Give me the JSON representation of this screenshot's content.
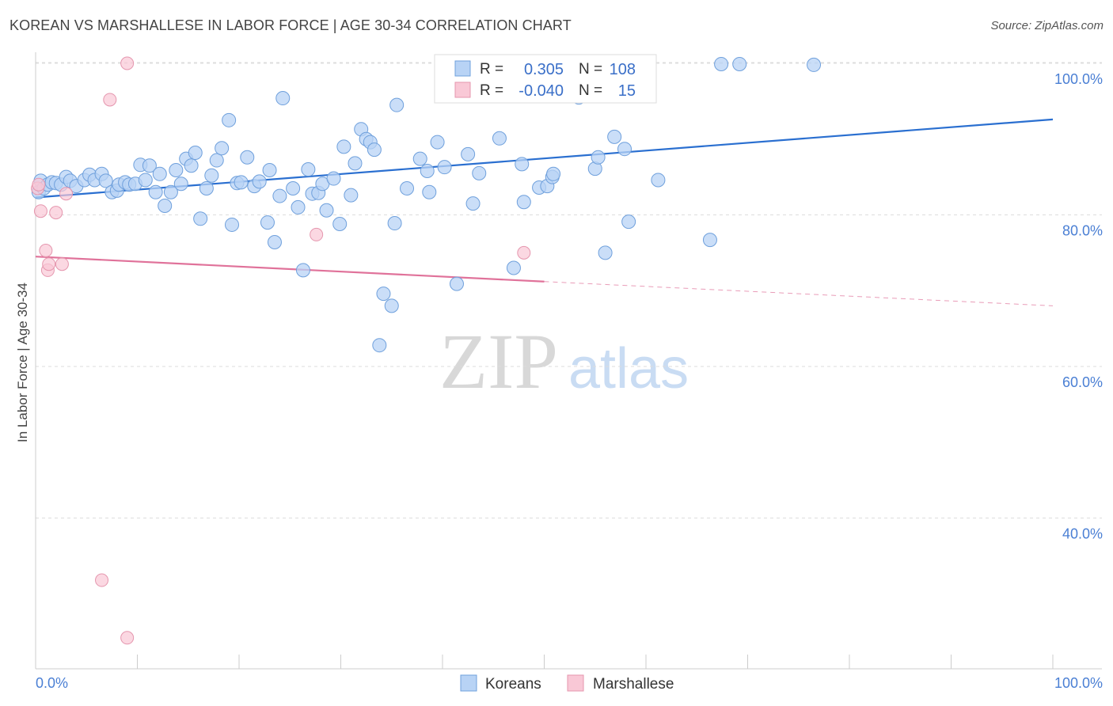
{
  "title": "KOREAN VS MARSHALLESE IN LABOR FORCE | AGE 30-34 CORRELATION CHART",
  "source": "Source: ZipAtlas.com",
  "watermark": {
    "zip": "ZIP",
    "atlas": "atlas"
  },
  "colors": {
    "korean_fill": "#b8d3f5",
    "korean_stroke": "#6fa0dc",
    "korean_line": "#2a6fd0",
    "marsh_fill": "#f9c8d6",
    "marsh_stroke": "#e596ae",
    "marsh_line": "#e0729a",
    "grid": "#dddddd",
    "axis_text": "#4a7fd4"
  },
  "legend": {
    "korean": {
      "r_label": "R =",
      "r_value": "0.305",
      "n_label": "N =",
      "n_value": "108"
    },
    "marsh": {
      "r_label": "R =",
      "r_value": "-0.040",
      "n_label": "N =",
      "n_value": "15"
    }
  },
  "bottom_legend": {
    "korean": "Koreans",
    "marsh": "Marshallese"
  },
  "chart_data": {
    "type": "scatter",
    "title": "KOREAN VS MARSHALLESE IN LABOR FORCE | AGE 30-34 CORRELATION CHART",
    "xlabel": "",
    "ylabel": "In Labor Force | Age 30-34",
    "xlim": [
      0,
      100
    ],
    "ylim": [
      18,
      102
    ],
    "x_tick_labels": [
      "0.0%",
      "100.0%"
    ],
    "y_ticks": [
      40,
      60,
      80,
      100
    ],
    "y_tick_labels": [
      "40.0%",
      "60.0%",
      "80.0%",
      "100.0%"
    ],
    "grid": true,
    "series": [
      {
        "name": "Koreans",
        "r": 0.305,
        "n": 108,
        "trend": {
          "x": [
            0,
            100
          ],
          "y": [
            82.3,
            92.6
          ]
        },
        "points": [
          [
            0.3,
            83.0
          ],
          [
            0.5,
            84.5
          ],
          [
            0.8,
            83.5
          ],
          [
            1.2,
            84.0
          ],
          [
            1.6,
            84.3
          ],
          [
            2.0,
            84.2
          ],
          [
            2.5,
            84.0
          ],
          [
            3.0,
            85.0
          ],
          [
            3.4,
            84.5
          ],
          [
            4.0,
            83.8
          ],
          [
            4.8,
            84.6
          ],
          [
            5.3,
            85.3
          ],
          [
            5.8,
            84.6
          ],
          [
            6.5,
            85.4
          ],
          [
            6.9,
            84.5
          ],
          [
            7.5,
            83.0
          ],
          [
            8.0,
            83.2
          ],
          [
            8.2,
            84.0
          ],
          [
            8.8,
            84.3
          ],
          [
            9.2,
            84.0
          ],
          [
            9.8,
            84.1
          ],
          [
            10.3,
            86.6
          ],
          [
            10.8,
            84.6
          ],
          [
            11.2,
            86.5
          ],
          [
            11.8,
            83.0
          ],
          [
            12.2,
            85.4
          ],
          [
            12.7,
            81.2
          ],
          [
            13.3,
            83.0
          ],
          [
            13.8,
            85.9
          ],
          [
            14.3,
            84.1
          ],
          [
            14.8,
            87.4
          ],
          [
            15.3,
            86.5
          ],
          [
            15.7,
            88.2
          ],
          [
            16.2,
            79.5
          ],
          [
            16.8,
            83.5
          ],
          [
            17.3,
            85.2
          ],
          [
            17.8,
            87.2
          ],
          [
            18.3,
            88.8
          ],
          [
            19.0,
            92.5
          ],
          [
            19.3,
            78.7
          ],
          [
            19.8,
            84.2
          ],
          [
            20.2,
            84.3
          ],
          [
            20.8,
            87.6
          ],
          [
            21.5,
            83.8
          ],
          [
            22.0,
            84.4
          ],
          [
            22.8,
            79.0
          ],
          [
            23.0,
            85.9
          ],
          [
            23.5,
            76.4
          ],
          [
            24.0,
            82.5
          ],
          [
            24.3,
            95.4
          ],
          [
            25.3,
            83.5
          ],
          [
            25.8,
            81.0
          ],
          [
            26.3,
            72.7
          ],
          [
            26.8,
            86.0
          ],
          [
            27.2,
            82.8
          ],
          [
            27.8,
            82.9
          ],
          [
            28.2,
            84.1
          ],
          [
            28.6,
            80.6
          ],
          [
            29.3,
            84.8
          ],
          [
            29.9,
            78.8
          ],
          [
            30.3,
            89.0
          ],
          [
            31.0,
            82.6
          ],
          [
            31.4,
            86.8
          ],
          [
            32.0,
            91.3
          ],
          [
            32.5,
            90.0
          ],
          [
            32.9,
            89.6
          ],
          [
            33.3,
            88.6
          ],
          [
            33.8,
            62.8
          ],
          [
            34.2,
            69.6
          ],
          [
            35.0,
            68.0
          ],
          [
            35.5,
            94.5
          ],
          [
            35.3,
            78.9
          ],
          [
            36.5,
            83.5
          ],
          [
            37.8,
            87.4
          ],
          [
            38.5,
            85.8
          ],
          [
            38.7,
            83.0
          ],
          [
            39.5,
            89.6
          ],
          [
            40.2,
            86.3
          ],
          [
            41.4,
            70.9
          ],
          [
            42.5,
            88.0
          ],
          [
            43.0,
            81.5
          ],
          [
            43.6,
            85.5
          ],
          [
            45.6,
            90.1
          ],
          [
            47.0,
            73.0
          ],
          [
            47.8,
            86.7
          ],
          [
            48.0,
            81.7
          ],
          [
            49.5,
            83.6
          ],
          [
            50.3,
            83.8
          ],
          [
            50.8,
            85.0
          ],
          [
            50.9,
            85.4
          ],
          [
            52.1,
            97.8
          ],
          [
            52.5,
            99.8
          ],
          [
            53.4,
            95.5
          ],
          [
            55.0,
            86.1
          ],
          [
            55.3,
            87.6
          ],
          [
            56.0,
            75.0
          ],
          [
            56.9,
            90.3
          ],
          [
            57.9,
            88.7
          ],
          [
            58.3,
            79.1
          ],
          [
            61.2,
            84.6
          ],
          [
            66.3,
            76.7
          ],
          [
            67.4,
            99.9
          ],
          [
            69.2,
            99.9
          ],
          [
            76.5,
            99.8
          ],
          [
            41.0,
            99.9
          ],
          [
            55.7,
            99.9
          ],
          [
            54.5,
            99.4
          ],
          [
            42.0,
            99.6
          ]
        ]
      },
      {
        "name": "Marshallese",
        "r": -0.04,
        "n": 15,
        "trend": {
          "x": [
            0,
            50
          ],
          "y": [
            74.5,
            71.2
          ],
          "dashed_to": [
            100,
            68.0
          ]
        },
        "points": [
          [
            0.2,
            83.5
          ],
          [
            0.5,
            80.5
          ],
          [
            1.0,
            75.3
          ],
          [
            1.2,
            72.7
          ],
          [
            1.3,
            73.5
          ],
          [
            2.0,
            80.3
          ],
          [
            2.6,
            73.5
          ],
          [
            3.0,
            82.8
          ],
          [
            6.5,
            31.8
          ],
          [
            7.3,
            95.2
          ],
          [
            9.0,
            100.0
          ],
          [
            9.0,
            24.2
          ],
          [
            27.6,
            77.4
          ],
          [
            48.0,
            75.0
          ],
          [
            0.3,
            84.0
          ]
        ]
      }
    ]
  }
}
